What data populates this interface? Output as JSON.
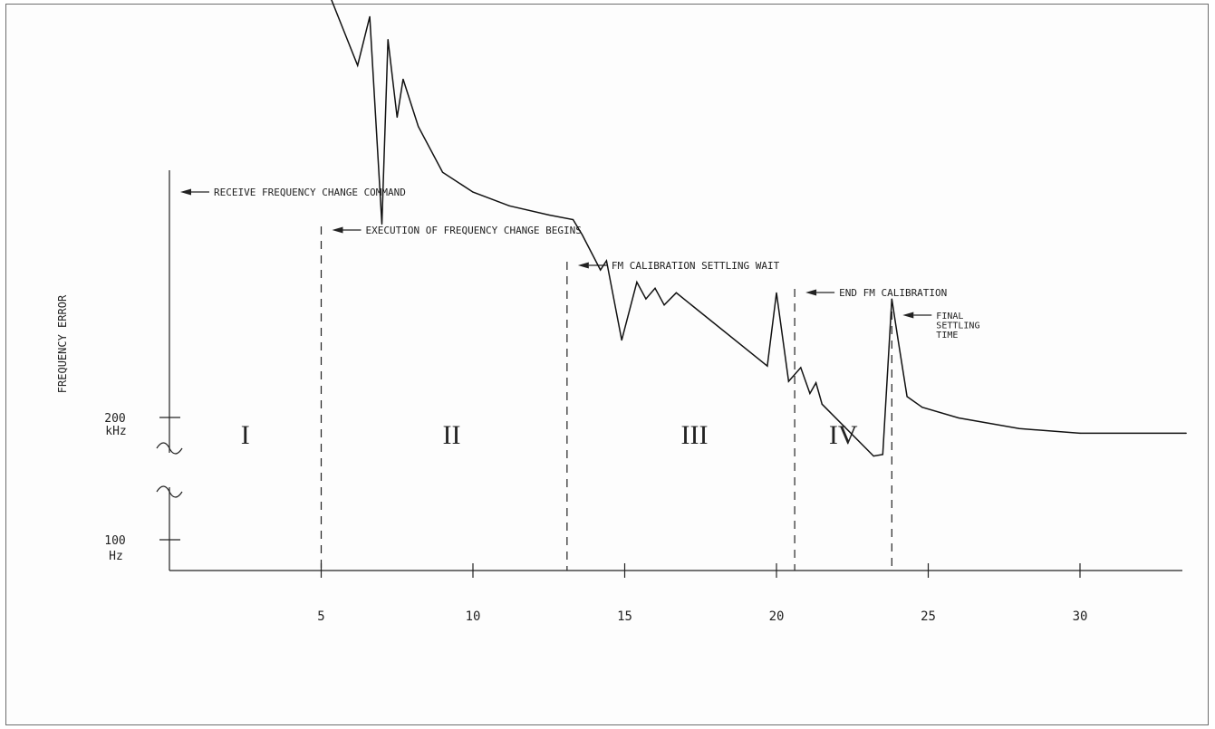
{
  "chart_data": {
    "type": "line",
    "title": "",
    "ylabel": "FREQUENCY ERROR",
    "xlabel": "",
    "x_ticks": [
      "5",
      "10",
      "15",
      "20",
      "25",
      "30"
    ],
    "xlim": [
      0,
      33.5
    ],
    "y_ticks": [
      {
        "value_line1": "200",
        "value_line2": "kHz"
      },
      {
        "value_line1": "100",
        "value_line2": "Hz"
      }
    ],
    "series": [
      {
        "x": [
          0,
          5,
          5.3,
          6.2,
          6.6,
          7.0,
          7.2,
          7.5,
          7.7,
          8.2,
          9.0,
          10.0,
          11.2,
          12.5,
          13.3,
          13.6,
          14.2,
          14.4,
          14.9,
          15.4,
          15.7,
          16.0,
          16.3,
          16.7,
          19.7,
          20.0,
          20.4,
          20.8,
          21.1,
          21.3,
          21.5,
          23.2,
          23.5,
          23.8,
          24.0,
          24.3,
          24.8,
          26.0,
          28.0,
          30.0,
          33.5
        ],
        "y": [
          4.05,
          4.05,
          3.76,
          3.31,
          3.63,
          2.27,
          3.48,
          2.97,
          3.22,
          2.91,
          2.61,
          2.48,
          2.39,
          2.33,
          2.3,
          2.2,
          1.97,
          2.03,
          1.51,
          1.89,
          1.78,
          1.85,
          1.74,
          1.82,
          1.34,
          1.82,
          1.24,
          1.33,
          1.16,
          1.23,
          1.09,
          0.75,
          0.76,
          1.78,
          1.52,
          1.14,
          1.07,
          1.0,
          0.93,
          0.9,
          0.9
        ]
      }
    ],
    "markers": [
      {
        "x": 0,
        "label": "RECEIVE FREQUENCY CHANGE COMMAND"
      },
      {
        "x": 5,
        "label": "EXECUTION OF FREQUENCY CHANGE BEGINS"
      },
      {
        "x": 13.1,
        "label": "FM CALIBRATION SETTLING WAIT"
      },
      {
        "x": 20.6,
        "label": "END FM CALIBRATION"
      },
      {
        "x": 23.8,
        "label_lines": [
          "FINAL",
          "SETTLING",
          "TIME"
        ]
      }
    ],
    "regions": [
      {
        "label": "I",
        "x": 2.5
      },
      {
        "label": "II",
        "x": 9.3
      },
      {
        "label": "III",
        "x": 17.3
      },
      {
        "label": "IV",
        "x": 22.2
      }
    ],
    "grid": false
  }
}
